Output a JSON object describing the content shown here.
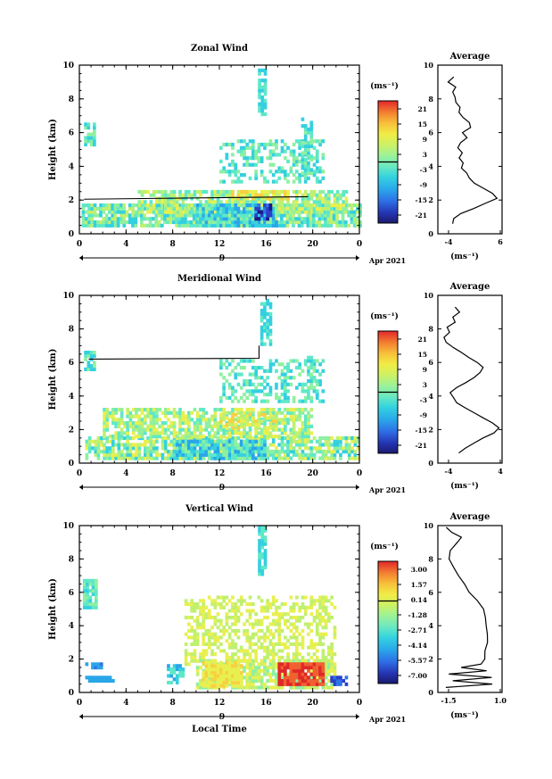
{
  "figure": {
    "date_label": "Apr 2021",
    "x_axis_title": "Local Time",
    "y_axis_title": "Height (km)",
    "unit_label": "(ms⁻¹)",
    "average_unit_label": "(ms⁻¹)",
    "average_title": "Average",
    "colormap": [
      "#1a1a8c",
      "#2a3fc8",
      "#2f73e8",
      "#2aa6e8",
      "#35d0e0",
      "#5fe8c8",
      "#8ef0a0",
      "#c0f070",
      "#e8f050",
      "#f8d040",
      "#f8a030",
      "#f06030",
      "#e02828"
    ]
  },
  "chart_data": [
    {
      "type": "heatmap",
      "title": "Zonal Wind",
      "xlabel": "",
      "ylabel": "Height (km)",
      "xlim": [
        0,
        24
      ],
      "ylim": [
        0,
        10
      ],
      "x_ticks": [
        "0",
        "4",
        "8",
        "12",
        "16",
        "20",
        "0"
      ],
      "y_ticks": [
        "0",
        "2",
        "4",
        "6",
        "8",
        "10"
      ],
      "date_tick": "9",
      "colorbar": {
        "ticks": [
          "21",
          "15",
          "9",
          "3",
          "-3",
          "-9",
          "-15",
          "-21"
        ],
        "range": [
          -24,
          24
        ]
      },
      "average": {
        "x_ticks": [
          "-4",
          "6"
        ],
        "xlim": [
          -5,
          7
        ],
        "ylim": [
          0,
          10
        ],
        "profile": {
          "height": [
            0.6,
            0.9,
            1.2,
            1.5,
            1.8,
            2.1,
            2.4,
            2.7,
            3.0,
            3.3,
            3.6,
            3.9,
            4.2,
            4.5,
            4.8,
            5.1,
            5.4,
            5.7,
            6.0,
            6.3,
            6.6,
            6.9,
            7.2,
            7.5,
            7.8,
            8.1,
            8.4,
            8.7,
            9.0,
            9.3
          ],
          "value": [
            -2.4,
            -2.0,
            -0.5,
            1.5,
            3.8,
            5.9,
            5.2,
            3.5,
            2.0,
            1.0,
            0.5,
            -0.5,
            -0.2,
            -1.0,
            -0.4,
            -1.2,
            -0.6,
            0.5,
            -0.2,
            1.2,
            0.8,
            -0.5,
            -1.0,
            -0.8,
            -1.5,
            -1.8,
            -2.2,
            -1.5,
            -3.0,
            -2.0
          ]
        }
      }
    },
    {
      "type": "heatmap",
      "title": "Meridional Wind",
      "xlabel": "",
      "ylabel": "Height (km)",
      "xlim": [
        0,
        24
      ],
      "ylim": [
        0,
        10
      ],
      "x_ticks": [
        "0",
        "4",
        "8",
        "12",
        "16",
        "20",
        "0"
      ],
      "y_ticks": [
        "0",
        "2",
        "4",
        "6",
        "8",
        "10"
      ],
      "date_tick": "9",
      "colorbar": {
        "ticks": [
          "21",
          "15",
          "9",
          "3",
          "-3",
          "-9",
          "-15",
          "-21"
        ],
        "range": [
          -24,
          24
        ]
      },
      "average": {
        "x_ticks": [
          "-4",
          "4"
        ],
        "xlim": [
          -5.5,
          5
        ],
        "ylim": [
          0,
          10
        ],
        "profile": {
          "height": [
            0.6,
            0.9,
            1.2,
            1.5,
            1.8,
            2.1,
            2.4,
            2.7,
            3.0,
            3.3,
            3.6,
            3.9,
            4.2,
            4.5,
            4.8,
            5.1,
            5.4,
            5.7,
            6.0,
            6.3,
            6.6,
            6.9,
            7.2,
            7.5,
            7.8,
            8.1,
            8.4,
            8.7,
            9.0,
            9.3
          ],
          "value": [
            -2.0,
            -1.0,
            0.5,
            2.0,
            3.5,
            4.5,
            3.5,
            2.0,
            0.5,
            -1.0,
            -2.5,
            -3.0,
            -3.5,
            -2.5,
            -1.0,
            0.5,
            1.5,
            1.8,
            1.0,
            -0.5,
            -1.5,
            -3.0,
            -4.0,
            -4.5,
            -3.5,
            -4.0,
            -2.5,
            -3.0,
            -2.0,
            -2.5
          ]
        }
      }
    },
    {
      "type": "heatmap",
      "title": "Vertical Wind",
      "xlabel": "Local Time",
      "ylabel": "Height (km)",
      "xlim": [
        0,
        24
      ],
      "ylim": [
        0,
        10
      ],
      "x_ticks": [
        "0",
        "4",
        "8",
        "12",
        "16",
        "20",
        "0"
      ],
      "y_ticks": [
        "0",
        "2",
        "4",
        "6",
        "8",
        "10"
      ],
      "date_tick": "9",
      "colorbar": {
        "ticks": [
          "3.00",
          "1.57",
          "0.14",
          "-1.28",
          "-2.71",
          "-4.14",
          "-5.57",
          "-7.00"
        ],
        "range": [
          -7.7,
          3.7
        ]
      },
      "average": {
        "x_ticks": [
          "-1.5",
          "1.0"
        ],
        "xlim": [
          -2,
          1.4
        ],
        "ylim": [
          0,
          10
        ],
        "profile": {
          "height": [
            0.3,
            0.5,
            0.7,
            0.9,
            1.1,
            1.3,
            1.5,
            1.7,
            2.0,
            2.5,
            3.0,
            3.5,
            4.0,
            4.5,
            5.0,
            5.5,
            6.0,
            6.5,
            7.0,
            7.5,
            8.0,
            8.5,
            9.0,
            9.3,
            9.6,
            9.9
          ],
          "value": [
            -1.6,
            0.9,
            -1.2,
            0.8,
            -1.4,
            0.6,
            -0.8,
            0.3,
            0.5,
            0.55,
            0.6,
            0.6,
            0.55,
            0.5,
            0.45,
            0.1,
            -0.3,
            -0.6,
            -0.9,
            -1.2,
            -1.4,
            -1.3,
            -1.0,
            -0.7,
            -1.3,
            -1.6
          ]
        }
      }
    }
  ]
}
